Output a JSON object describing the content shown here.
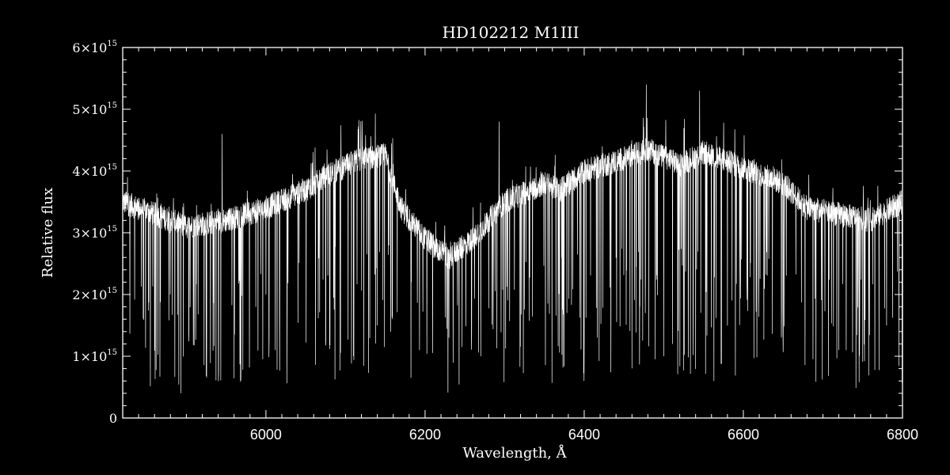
{
  "chart_data": {
    "type": "line",
    "title": "HD102212   M1III",
    "xlabel": "Wavelength, Å",
    "ylabel": "Relative flux",
    "xlim": [
      5820,
      6800
    ],
    "ylim": [
      0,
      6000000000000000.0
    ],
    "x_ticks": [
      6000,
      6200,
      6400,
      6600,
      6800
    ],
    "x_tick_labels": [
      "6000",
      "6200",
      "6400",
      "6600",
      "6800"
    ],
    "y_ticks": [
      0,
      1000000000000000.0,
      2000000000000000.0,
      3000000000000000.0,
      4000000000000000.0,
      5000000000000000.0,
      6000000000000000.0
    ],
    "y_tick_labels": [
      {
        "base": "0",
        "exp": ""
      },
      {
        "base": "1×10",
        "exp": "15"
      },
      {
        "base": "2×10",
        "exp": "15"
      },
      {
        "base": "3×10",
        "exp": "15"
      },
      {
        "base": "4×10",
        "exp": "15"
      },
      {
        "base": "5×10",
        "exp": "15"
      },
      {
        "base": "6×10",
        "exp": "15"
      }
    ],
    "grid": false,
    "series": [
      {
        "color": "#ffffff",
        "continuum_wavelength": [
          5820,
          5860,
          5900,
          5950,
          6000,
          6050,
          6080,
          6120,
          6150,
          6170,
          6200,
          6230,
          6260,
          6300,
          6350,
          6370,
          6400,
          6450,
          6480,
          6520,
          6550,
          6600,
          6650,
          6680,
          6720,
          6760,
          6800
        ],
        "continuum_flux": [
          3500000000000000.0,
          3300000000000000.0,
          3100000000000000.0,
          3200000000000000.0,
          3400000000000000.0,
          3700000000000000.0,
          3950000000000000.0,
          4200000000000000.0,
          4250000000000000.0,
          3400000000000000.0,
          2900000000000000.0,
          2600000000000000.0,
          2900000000000000.0,
          3500000000000000.0,
          3800000000000000.0,
          3700000000000000.0,
          4000000000000000.0,
          4200000000000000.0,
          4350000000000000.0,
          4100000000000000.0,
          4300000000000000.0,
          4050000000000000.0,
          3800000000000000.0,
          3400000000000000.0,
          3300000000000000.0,
          3200000000000000.0,
          3500000000000000.0
        ],
        "spike_extremes": [
          {
            "x": 5893,
            "y": 400000000000000.0
          },
          {
            "x": 6563,
            "y": 600000000000000.0
          },
          {
            "x": 6478,
            "y": 5400000000000000.0
          },
          {
            "x": 6545,
            "y": 5300000000000000.0
          },
          {
            "x": 6293,
            "y": 4800000000000000.0
          },
          {
            "x": 6000,
            "y": 2000000000000000.0
          },
          {
            "x": 6110,
            "y": 1000000000000000.0
          },
          {
            "x": 6400,
            "y": 1300000000000000.0
          },
          {
            "x": 6500,
            "y": 1000000000000000.0
          },
          {
            "x": 6720,
            "y": 1100000000000000.0
          },
          {
            "x": 6780,
            "y": 1500000000000000.0
          },
          {
            "x": 5945,
            "y": 4600000000000000.0
          },
          {
            "x": 6270,
            "y": 1000000000000000.0
          },
          {
            "x": 6230,
            "y": 1300000000000000.0
          }
        ]
      }
    ]
  }
}
